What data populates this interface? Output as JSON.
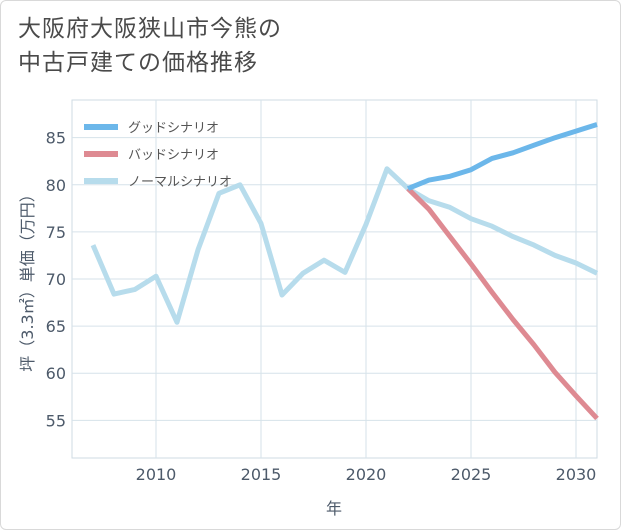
{
  "title_lines": [
    "大阪府大阪狭山市今熊の",
    "中古戸建ての価格推移"
  ],
  "chart_data": {
    "type": "line",
    "xlabel": "年",
    "ylabel": "坪（3.3㎡）単価（万円）",
    "xlim": [
      2006,
      2031
    ],
    "ylim": [
      51,
      89
    ],
    "xticks": [
      2010,
      2015,
      2020,
      2025,
      2030
    ],
    "yticks": [
      55,
      60,
      65,
      70,
      75,
      80,
      85
    ],
    "grid": true,
    "legend_position": "top-left",
    "series": [
      {
        "name": "グッドシナリオ",
        "color": "#6cb7ea",
        "x": [
          2022,
          2023,
          2024,
          2025,
          2026,
          2027,
          2028,
          2029,
          2030,
          2031
        ],
        "y": [
          79.6,
          80.5,
          80.9,
          81.6,
          82.8,
          83.4,
          84.2,
          85.0,
          85.7,
          86.4
        ]
      },
      {
        "name": "バッドシナリオ",
        "color": "#de8a92",
        "x": [
          2022,
          2023,
          2024,
          2025,
          2026,
          2027,
          2028,
          2029,
          2030,
          2031
        ],
        "y": [
          79.6,
          77.4,
          74.5,
          71.6,
          68.6,
          65.7,
          63.0,
          60.1,
          57.6,
          55.2
        ]
      },
      {
        "name": "ノーマルシナリオ",
        "color": "#b7dcec",
        "x": [
          2007,
          2008,
          2009,
          2010,
          2011,
          2012,
          2013,
          2014,
          2015,
          2016,
          2017,
          2018,
          2019,
          2020,
          2021,
          2022,
          2023,
          2024,
          2025,
          2026,
          2027,
          2028,
          2029,
          2030,
          2031
        ],
        "y": [
          73.6,
          68.4,
          68.9,
          70.3,
          65.4,
          73.1,
          79.1,
          80.0,
          75.9,
          68.3,
          70.6,
          72.0,
          70.7,
          75.8,
          81.7,
          79.6,
          78.3,
          77.6,
          76.4,
          75.6,
          74.5,
          73.6,
          72.5,
          71.7,
          70.6
        ]
      }
    ]
  }
}
